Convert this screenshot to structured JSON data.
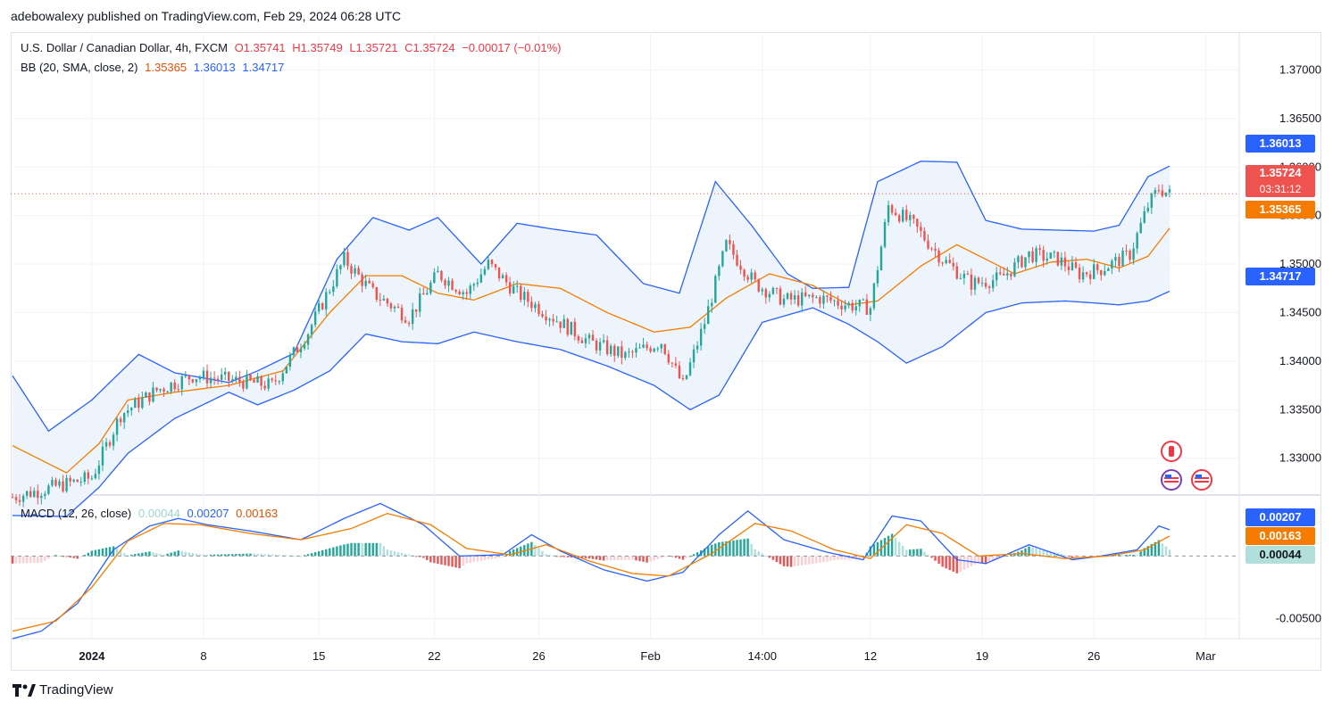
{
  "publisher": "adebowalexy published on TradingView.com, Feb 29, 2024 06:28 UTC",
  "legend": {
    "symbol": "U.S. Dollar / Canadian Dollar, 4h, FXCM",
    "open": "O1.35741",
    "high": "H1.35749",
    "low": "L1.35721",
    "close": "C1.35724",
    "change": "−0.00017 (−0.01%)",
    "bb_label": "BB (20, SMA, close, 2)",
    "bb_mid": "1.35365",
    "bb_upper": "1.36013",
    "bb_lower": "1.34717",
    "macd_label": "MACD (12, 26, close)",
    "macd_hist": "0.00044",
    "macd_line": "0.00207",
    "macd_signal": "0.00163"
  },
  "price_labels": {
    "upper": "1.36013",
    "last": "1.35724",
    "countdown": "03:31:12",
    "mid": "1.35365",
    "lower": "1.34717",
    "macd_line": "0.00207",
    "macd_signal": "0.00163",
    "macd_hist": "0.00044"
  },
  "brand": "TradingView",
  "colors": {
    "bull": "#26a69a",
    "bear": "#ef5350",
    "bb_band": "#2962ff",
    "bb_basis": "#f57c00",
    "bb_fill": "#eef4fb",
    "macd_line": "#2962ff",
    "signal_line": "#f57c00"
  },
  "chart_data": {
    "type": "candlestick",
    "symbol": "USDCAD",
    "timeframe": "4h",
    "price_axis": {
      "ticks": [
        "1.37000",
        "1.36500",
        "1.36000",
        "1.35500",
        "1.35000",
        "1.34500",
        "1.34000",
        "1.33500",
        "1.33000"
      ],
      "ylim": [
        1.3263,
        1.3739
      ]
    },
    "macd_axis": {
      "ticks": [
        "-0.00500"
      ],
      "ylim": [
        -0.0066,
        0.0048
      ]
    },
    "time_axis": {
      "ticks": [
        "2024",
        "8",
        "15",
        "22",
        "26",
        "Feb",
        "14:00",
        "12",
        "19",
        "26",
        "Mar"
      ]
    },
    "bollinger": {
      "upper": [
        [
          0,
          1.3385
        ],
        [
          10,
          1.3328
        ],
        [
          22,
          1.336
        ],
        [
          35,
          1.3407
        ],
        [
          45,
          1.3388
        ],
        [
          60,
          1.3378
        ],
        [
          68,
          1.339
        ],
        [
          78,
          1.3408
        ],
        [
          90,
          1.3505
        ],
        [
          100,
          1.3548
        ],
        [
          110,
          1.3535
        ],
        [
          118,
          1.3548
        ],
        [
          130,
          1.35
        ],
        [
          140,
          1.3542
        ],
        [
          150,
          1.3536
        ],
        [
          162,
          1.353
        ],
        [
          175,
          1.348
        ],
        [
          185,
          1.347
        ],
        [
          195,
          1.3585
        ],
        [
          205,
          1.354
        ],
        [
          215,
          1.349
        ],
        [
          222,
          1.3475
        ],
        [
          232,
          1.3476
        ],
        [
          240,
          1.3585
        ],
        [
          252,
          1.3606
        ],
        [
          262,
          1.3605
        ],
        [
          270,
          1.3545
        ],
        [
          280,
          1.3536
        ],
        [
          290,
          1.3535
        ],
        [
          300,
          1.3534
        ],
        [
          307,
          1.354
        ],
        [
          315,
          1.359
        ],
        [
          321,
          1.3601
        ]
      ],
      "basis": [
        [
          0,
          1.3313
        ],
        [
          15,
          1.3285
        ],
        [
          24,
          1.3315
        ],
        [
          32,
          1.336
        ],
        [
          45,
          1.3368
        ],
        [
          60,
          1.3375
        ],
        [
          75,
          1.339
        ],
        [
          88,
          1.345
        ],
        [
          98,
          1.3488
        ],
        [
          108,
          1.3488
        ],
        [
          118,
          1.347
        ],
        [
          128,
          1.3463
        ],
        [
          140,
          1.348
        ],
        [
          152,
          1.3475
        ],
        [
          165,
          1.345
        ],
        [
          178,
          1.343
        ],
        [
          188,
          1.3435
        ],
        [
          198,
          1.3465
        ],
        [
          210,
          1.349
        ],
        [
          222,
          1.3478
        ],
        [
          232,
          1.3458
        ],
        [
          240,
          1.3462
        ],
        [
          252,
          1.3498
        ],
        [
          262,
          1.352
        ],
        [
          270,
          1.3505
        ],
        [
          278,
          1.349
        ],
        [
          288,
          1.3502
        ],
        [
          298,
          1.3505
        ],
        [
          307,
          1.3496
        ],
        [
          315,
          1.3508
        ],
        [
          321,
          1.3537
        ]
      ],
      "lower": [
        [
          0,
          1.3241
        ],
        [
          15,
          1.324
        ],
        [
          24,
          1.327
        ],
        [
          32,
          1.3305
        ],
        [
          45,
          1.3341
        ],
        [
          60,
          1.3368
        ],
        [
          68,
          1.3355
        ],
        [
          78,
          1.337
        ],
        [
          88,
          1.339
        ],
        [
          98,
          1.3428
        ],
        [
          108,
          1.342
        ],
        [
          118,
          1.3418
        ],
        [
          128,
          1.343
        ],
        [
          140,
          1.342
        ],
        [
          152,
          1.3412
        ],
        [
          165,
          1.3395
        ],
        [
          178,
          1.3375
        ],
        [
          188,
          1.335
        ],
        [
          196,
          1.3365
        ],
        [
          208,
          1.344
        ],
        [
          222,
          1.3455
        ],
        [
          232,
          1.3438
        ],
        [
          240,
          1.342
        ],
        [
          248,
          1.3398
        ],
        [
          258,
          1.3415
        ],
        [
          270,
          1.345
        ],
        [
          280,
          1.346
        ],
        [
          292,
          1.3462
        ],
        [
          300,
          1.346
        ],
        [
          307,
          1.3458
        ],
        [
          315,
          1.3462
        ],
        [
          321,
          1.3472
        ]
      ]
    },
    "close_path": [
      [
        0,
        1.326
      ],
      [
        22,
        1.328
      ],
      [
        30,
        1.3345
      ],
      [
        40,
        1.337
      ],
      [
        50,
        1.3385
      ],
      [
        62,
        1.338
      ],
      [
        72,
        1.3375
      ],
      [
        82,
        1.343
      ],
      [
        92,
        1.3505
      ],
      [
        100,
        1.347
      ],
      [
        110,
        1.3445
      ],
      [
        118,
        1.349
      ],
      [
        126,
        1.347
      ],
      [
        132,
        1.35
      ],
      [
        140,
        1.347
      ],
      [
        150,
        1.3445
      ],
      [
        160,
        1.342
      ],
      [
        170,
        1.3405
      ],
      [
        180,
        1.342
      ],
      [
        186,
        1.3375
      ],
      [
        192,
        1.344
      ],
      [
        198,
        1.352
      ],
      [
        206,
        1.348
      ],
      [
        214,
        1.3463
      ],
      [
        224,
        1.3465
      ],
      [
        232,
        1.3458
      ],
      [
        238,
        1.3455
      ],
      [
        243,
        1.356
      ],
      [
        250,
        1.354
      ],
      [
        258,
        1.3505
      ],
      [
        266,
        1.348
      ],
      [
        274,
        1.3485
      ],
      [
        282,
        1.351
      ],
      [
        290,
        1.3505
      ],
      [
        296,
        1.349
      ],
      [
        302,
        1.3495
      ],
      [
        310,
        1.351
      ],
      [
        315,
        1.356
      ],
      [
        318,
        1.3578
      ],
      [
        321,
        1.3572
      ]
    ],
    "last_price": 1.35724,
    "macd_line": [
      [
        0,
        -0.0066
      ],
      [
        8,
        -0.006
      ],
      [
        18,
        -0.0038
      ],
      [
        28,
        0.0005
      ],
      [
        38,
        0.0024
      ],
      [
        46,
        0.003
      ],
      [
        54,
        0.0025
      ],
      [
        66,
        0.002
      ],
      [
        80,
        0.0013
      ],
      [
        92,
        0.003
      ],
      [
        102,
        0.0042
      ],
      [
        114,
        0.0025
      ],
      [
        124,
        0.0
      ],
      [
        136,
        0.0001
      ],
      [
        144,
        0.0017
      ],
      [
        152,
        0.0004
      ],
      [
        164,
        -0.0011
      ],
      [
        176,
        -0.002
      ],
      [
        186,
        -0.0013
      ],
      [
        196,
        0.0017
      ],
      [
        204,
        0.0036
      ],
      [
        214,
        0.0013
      ],
      [
        226,
        0.0003
      ],
      [
        236,
        -0.0003
      ],
      [
        244,
        0.0032
      ],
      [
        252,
        0.0028
      ],
      [
        262,
        -0.0003
      ],
      [
        270,
        -0.0006
      ],
      [
        282,
        0.0009
      ],
      [
        294,
        -0.0003
      ],
      [
        302,
        0.0
      ],
      [
        312,
        0.0005
      ],
      [
        318,
        0.0024
      ],
      [
        321,
        0.0021
      ]
    ],
    "signal_line": [
      [
        0,
        -0.006
      ],
      [
        12,
        -0.0052
      ],
      [
        22,
        -0.0025
      ],
      [
        32,
        0.0012
      ],
      [
        42,
        0.0026
      ],
      [
        52,
        0.0025
      ],
      [
        66,
        0.0018
      ],
      [
        80,
        0.0013
      ],
      [
        94,
        0.0022
      ],
      [
        104,
        0.0034
      ],
      [
        116,
        0.0025
      ],
      [
        126,
        0.0006
      ],
      [
        138,
        0.0001
      ],
      [
        148,
        0.0009
      ],
      [
        160,
        -0.0004
      ],
      [
        172,
        -0.0014
      ],
      [
        182,
        -0.0016
      ],
      [
        194,
        0.0002
      ],
      [
        206,
        0.0026
      ],
      [
        216,
        0.002
      ],
      [
        228,
        0.0005
      ],
      [
        238,
        -0.0002
      ],
      [
        248,
        0.0025
      ],
      [
        258,
        0.0018
      ],
      [
        268,
        0.0
      ],
      [
        280,
        0.0002
      ],
      [
        292,
        -0.0002
      ],
      [
        304,
        0.0
      ],
      [
        314,
        0.0005
      ],
      [
        321,
        0.0016
      ]
    ],
    "bar_count": 322
  }
}
